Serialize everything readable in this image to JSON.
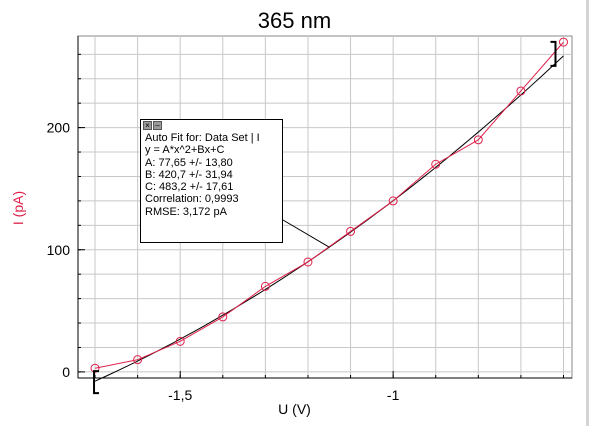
{
  "chart_data": {
    "type": "scatter",
    "title": "365 nm",
    "xlabel": "U (V)",
    "ylabel": "I (pA)",
    "xlim": [
      -1.74,
      -0.58
    ],
    "ylim": [
      -5,
      275
    ],
    "xticks": [
      -1.5,
      -1
    ],
    "xtick_labels": [
      "-1,5",
      "-1"
    ],
    "yticks": [
      0,
      100,
      200
    ],
    "ytick_labels": [
      "0",
      "100",
      "200"
    ],
    "grid": true,
    "series": [
      {
        "points": [
          {
            "x": -1.7,
            "y": 3
          },
          {
            "x": -1.6,
            "y": 10
          },
          {
            "x": -1.5,
            "y": 25
          },
          {
            "x": -1.4,
            "y": 45
          },
          {
            "x": -1.3,
            "y": 70
          },
          {
            "x": -1.2,
            "y": 90
          },
          {
            "x": -1.1,
            "y": 115
          },
          {
            "x": -1.0,
            "y": 140
          },
          {
            "x": -0.9,
            "y": 170
          },
          {
            "x": -0.8,
            "y": 190
          },
          {
            "x": -0.7,
            "y": 230
          },
          {
            "x": -0.6,
            "y": 270
          }
        ],
        "color": "#e0204a",
        "marker": "circle"
      }
    ],
    "fit": {
      "A": 77.65,
      "B": 420.7,
      "C": 483.2,
      "range": [
        -1.7,
        -0.6
      ],
      "color": "#000000"
    },
    "colors": {
      "grid": "#c8c8c8",
      "axis": "#000000",
      "ylabel": "#e0204a"
    }
  },
  "fit_box": {
    "header_icons": [
      "close-icon",
      "minimize-icon"
    ],
    "lines": [
      "Auto Fit for: Data Set | I",
      "y = A*x^2+Bx+C",
      "A: 77,65 +/- 13,80",
      "B: 420,7 +/- 31,94",
      "C: 483,2 +/- 17,61",
      "Correlation: 0,9993",
      "RMSE: 3,172 pA"
    ]
  }
}
